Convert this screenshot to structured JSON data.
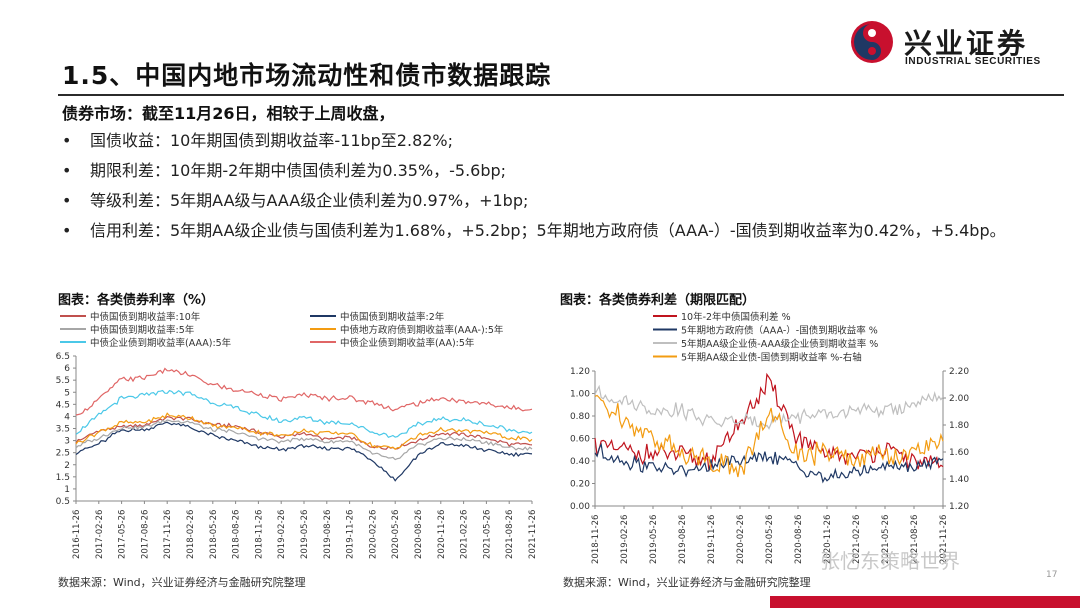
{
  "header": {
    "title": "1.5、中国内地市场流动性和债市数据跟踪",
    "logo_cn": "兴业证券",
    "logo_en": "INDUSTRIAL SECURITIES"
  },
  "body": {
    "lead": "债券市场：截至11月26日，相较于上周收盘，",
    "bullets": [
      "国债收益：10年期国债到期收益率-11bp至2.82%;",
      "期限利差：10年期-2年期中债国债利差为0.35%，-5.6bp;",
      "等级利差：5年期AA级与AAA级企业债利差为0.97%，+1bp;",
      "信用利差：5年期AA级企业债与国债利差为1.68%，+5.2bp；5年期地方政府债（AAA-）-国债到期收益率为0.42%，+5.4bp。"
    ]
  },
  "figures": {
    "left_title": "图表：各类债券利率（%）",
    "right_title": "图表：各类债券利差（期限匹配）",
    "source_left": "数据来源：Wind，兴业证券经济与金融研究院整理",
    "source_right": "数据来源：Wind，兴业证券经济与金融研究院整理"
  },
  "watermark": "张忆东策略世界",
  "page_number": "17",
  "chart_data": [
    {
      "type": "line",
      "ylim": [
        0.5,
        6.5
      ],
      "yticks": [
        "0.5",
        "1.5",
        "2.5",
        "3.5",
        "4.5",
        "5.5",
        "6.5"
      ],
      "yticks_minor": [
        "1",
        "1.5",
        "2",
        "2.5",
        "3",
        "3.5",
        "4",
        "4.5",
        "5",
        "5.5",
        "6",
        "6.5"
      ],
      "ytick_labels": [
        "0.5",
        "1",
        "1.5",
        "2",
        "2.5",
        "3",
        "3.5",
        "4",
        "4.5",
        "5",
        "5.5",
        "6",
        "6.5"
      ],
      "xtick_labels": [
        "2016-11-26",
        "2017-02-26",
        "2017-05-26",
        "2017-08-26",
        "2017-11-26",
        "2018-02-26",
        "2018-05-26",
        "2018-08-26",
        "2018-11-26",
        "2019-02-26",
        "2019-05-26",
        "2019-08-26",
        "2019-11-26",
        "2020-02-26",
        "2020-05-26",
        "2020-08-26",
        "2020-11-26",
        "2021-02-26",
        "2021-05-26",
        "2021-08-26",
        "2021-11-26"
      ],
      "legend": [
        {
          "name": "中债国债到期收益率:10年",
          "color": "#c0504d"
        },
        {
          "name": "中债国债到期收益率:2年",
          "color": "#1f3864"
        },
        {
          "name": "中债国债到期收益率:5年",
          "color": "#a6a6a6"
        },
        {
          "name": "中债地方政府债到期收益率(AAA-):5年",
          "color": "#f39c12"
        },
        {
          "name": "中债企业债到期收益率(AAA):5年",
          "color": "#4bc8e8"
        },
        {
          "name": "中债企业债到期收益率(AA):5年",
          "color": "#e06666"
        }
      ],
      "series": [
        {
          "name": "中债国债到期收益率:10年",
          "color": "#c0504d",
          "values": [
            2.95,
            3.4,
            3.55,
            3.65,
            3.95,
            3.9,
            3.65,
            3.6,
            3.35,
            3.15,
            3.3,
            3.05,
            3.15,
            2.75,
            2.7,
            3.0,
            3.3,
            3.25,
            3.1,
            2.85,
            2.82
          ]
        },
        {
          "name": "中债国债到期收益率:2年",
          "color": "#1f3864",
          "values": [
            2.5,
            2.85,
            3.45,
            3.45,
            3.75,
            3.55,
            3.2,
            3.0,
            2.75,
            2.6,
            2.8,
            2.65,
            2.7,
            2.2,
            1.35,
            2.4,
            2.85,
            2.8,
            2.6,
            2.45,
            2.45
          ]
        },
        {
          "name": "中债国债到期收益率:5年",
          "color": "#a6a6a6",
          "values": [
            2.75,
            3.1,
            3.55,
            3.55,
            3.85,
            3.75,
            3.45,
            3.35,
            3.1,
            2.95,
            3.1,
            2.95,
            3.0,
            2.45,
            2.2,
            2.8,
            3.1,
            3.05,
            2.95,
            2.7,
            2.65
          ]
        },
        {
          "name": "中债地方政府债到期收益率(AAA-):5年",
          "color": "#f39c12",
          "values": [
            2.9,
            3.35,
            3.75,
            3.75,
            4.05,
            3.95,
            3.6,
            3.55,
            3.35,
            3.2,
            3.4,
            3.3,
            3.3,
            2.8,
            2.65,
            3.2,
            3.45,
            3.4,
            3.35,
            3.1,
            3.05
          ]
        },
        {
          "name": "中债企业债到期收益率(AAA):5年",
          "color": "#4bc8e8",
          "values": [
            3.3,
            4.05,
            4.75,
            4.85,
            5.05,
            4.95,
            4.55,
            4.35,
            4.05,
            3.8,
            3.95,
            3.75,
            3.75,
            3.35,
            3.15,
            3.65,
            3.9,
            3.85,
            3.65,
            3.45,
            3.35
          ]
        },
        {
          "name": "中债企业债到期收益率(AA):5年",
          "color": "#e06666",
          "values": [
            4.0,
            4.7,
            5.55,
            5.6,
            5.95,
            5.7,
            5.3,
            5.1,
            4.95,
            4.7,
            4.9,
            4.75,
            4.75,
            4.55,
            4.3,
            4.55,
            4.75,
            4.6,
            4.55,
            4.35,
            4.3
          ]
        }
      ]
    },
    {
      "type": "line",
      "ylim": [
        0.0,
        1.2
      ],
      "ylim_right": [
        1.2,
        2.2
      ],
      "ytick_labels": [
        "0.00",
        "0.20",
        "0.40",
        "0.60",
        "0.80",
        "1.00",
        "1.20"
      ],
      "ytick_labels_right": [
        "1.20",
        "1.40",
        "1.60",
        "1.80",
        "2.00",
        "2.20"
      ],
      "xtick_labels": [
        "2018-11-26",
        "2019-02-26",
        "2019-05-26",
        "2019-08-26",
        "2019-11-26",
        "2020-02-26",
        "2020-05-26",
        "2020-08-26",
        "2020-11-26",
        "2021-02-26",
        "2021-05-26",
        "2021-08-26",
        "2021-11-26"
      ],
      "legend": [
        {
          "name": "10年-2年中债国债利差 %",
          "color": "#c0141e"
        },
        {
          "name": "5年期地方政府债（AAA-）-国债到期收益率 %",
          "color": "#1f3864"
        },
        {
          "name": "5年期AA级企业债-AAA级企业债到期收益率 %",
          "color": "#bfbfbf"
        },
        {
          "name": "5年期AA级企业债-国债到期收益率 %-右轴",
          "color": "#f39c12"
        }
      ],
      "series": [
        {
          "name": "10年-2年中债国债利差 %",
          "color": "#c0141e",
          "values": [
            0.55,
            0.5,
            0.45,
            0.45,
            0.4,
            0.75,
            1.1,
            0.6,
            0.45,
            0.45,
            0.5,
            0.4,
            0.35
          ]
        },
        {
          "name": "5年期地方政府债（AAA-）-国债到期收益率 %",
          "color": "#1f3864",
          "values": [
            0.5,
            0.4,
            0.35,
            0.3,
            0.35,
            0.4,
            0.45,
            0.35,
            0.25,
            0.3,
            0.35,
            0.35,
            0.42
          ]
        },
        {
          "name": "5年期AA级企业债-AAA级企业债到期收益率 %",
          "color": "#bfbfbf",
          "values": [
            1.0,
            0.95,
            0.85,
            0.85,
            0.75,
            0.75,
            0.75,
            0.8,
            0.8,
            0.85,
            0.85,
            0.9,
            0.97
          ]
        },
        {
          "name": "5年期AA级企业债-国债到期收益率 %-右轴",
          "color": "#f39c12",
          "axis": "right",
          "values": [
            2.0,
            1.85,
            1.7,
            1.6,
            1.55,
            1.45,
            1.9,
            1.6,
            1.6,
            1.55,
            1.6,
            1.58,
            1.68
          ]
        }
      ]
    }
  ]
}
